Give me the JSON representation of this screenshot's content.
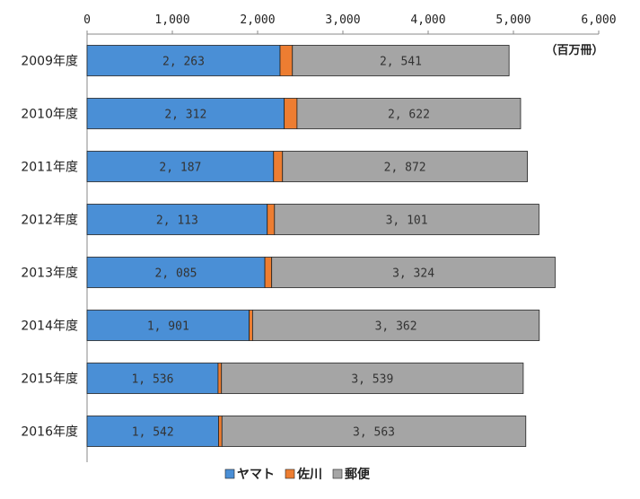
{
  "chart_data": {
    "type": "bar",
    "orientation": "horizontal",
    "stacked": true,
    "categories": [
      "2009年度",
      "2010年度",
      "2011年度",
      "2012年度",
      "2013年度",
      "2014年度",
      "2015年度",
      "2016年度"
    ],
    "series": [
      {
        "name": "ヤマト",
        "color": "#4a8fd6",
        "values": [
          2263,
          2312,
          2187,
          2113,
          2085,
          1901,
          1536,
          1542
        ],
        "labeled": true
      },
      {
        "name": "佐川",
        "color": "#ed7d31",
        "values": [
          145,
          150,
          105,
          85,
          80,
          40,
          40,
          40
        ],
        "labeled": false
      },
      {
        "name": "郵便",
        "color": "#a5a5a5",
        "values": [
          2541,
          2622,
          2872,
          3101,
          3324,
          3362,
          3539,
          3563
        ],
        "labeled": true
      }
    ],
    "xlim": [
      0,
      6000
    ],
    "xticks": [
      0,
      1000,
      2000,
      3000,
      4000,
      5000,
      6000
    ],
    "xtick_labels": [
      "0",
      "1,000",
      "2,000",
      "3,000",
      "4,000",
      "5,000",
      "6,000"
    ],
    "unit": "（百万冊）",
    "legend_position": "bottom",
    "grid": false
  }
}
